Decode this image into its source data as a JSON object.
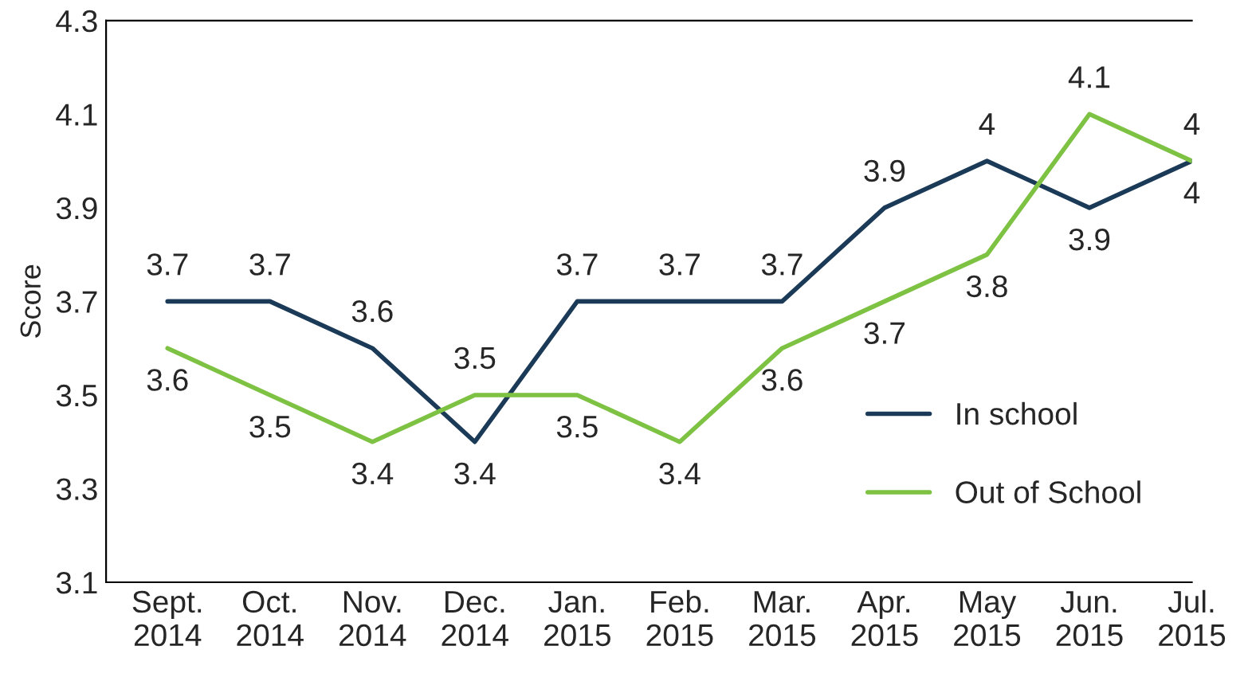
{
  "chart_data": {
    "type": "line",
    "ylabel": "Score",
    "categories": [
      "Sept.\n2014",
      "Oct.\n2014",
      "Nov.\n2014",
      "Dec.\n2014",
      "Jan.\n2015",
      "Feb.\n2015",
      "Mar.\n2015",
      "Apr.\n2015",
      "May\n2015",
      "Jun.\n2015",
      "Jul.\n2015"
    ],
    "series": [
      {
        "name": "In school",
        "color": "#1b3a57",
        "values": [
          3.7,
          3.7,
          3.6,
          3.4,
          3.7,
          3.7,
          3.7,
          3.9,
          4,
          3.9,
          4
        ]
      },
      {
        "name": "Out of School",
        "color": "#7dc242",
        "values": [
          3.6,
          3.5,
          3.4,
          3.5,
          3.5,
          3.4,
          3.6,
          3.7,
          3.8,
          4.1,
          4
        ]
      }
    ],
    "ylim": [
      3.1,
      4.3
    ],
    "yticks": [
      3.1,
      3.3,
      3.5,
      3.7,
      3.9,
      4.1,
      4.3
    ],
    "grid": false,
    "legend": "bottom right",
    "data_labels": true,
    "marker": "none",
    "line_style": "solid"
  }
}
